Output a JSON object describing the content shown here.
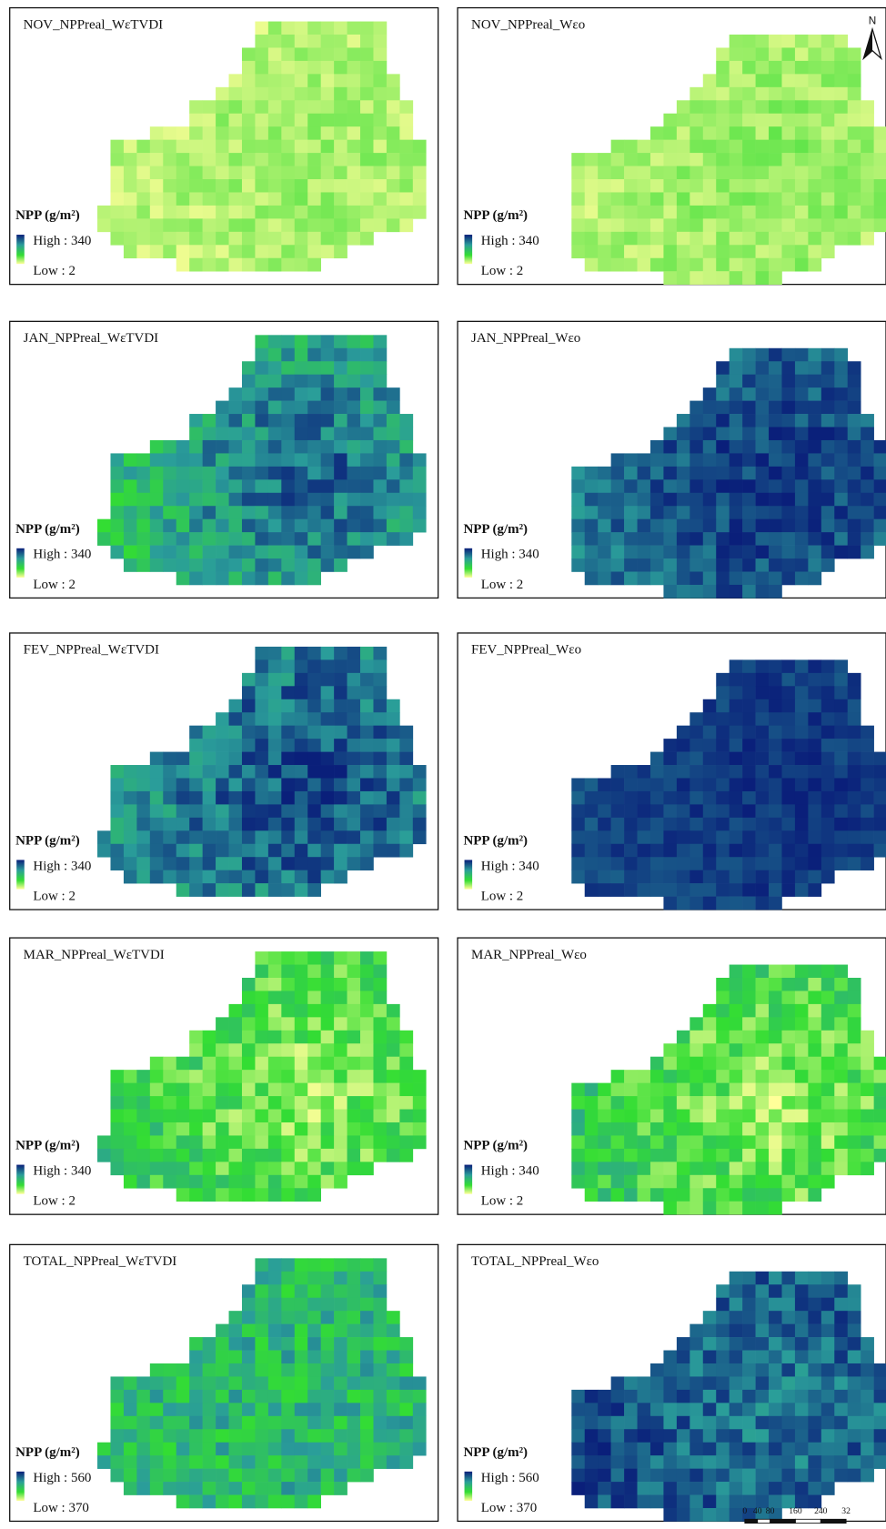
{
  "panels": [
    {
      "title": "NOV_NPPreal_WεTVDI",
      "legend": {
        "title": "NPP (g/m²)",
        "high": "High : 340",
        "low": "Low : 2"
      }
    },
    {
      "title": "NOV_NPPreal_Wεo",
      "legend": {
        "title": "NPP (g/m²)",
        "high": "High : 340",
        "low": "Low : 2"
      }
    },
    {
      "title": "JAN_NPPreal_WεTVDI",
      "legend": {
        "title": "NPP (g/m²)",
        "high": "High : 340",
        "low": "Low : 2"
      }
    },
    {
      "title": "JAN_NPPreal_Wεo",
      "legend": {
        "title": "NPP (g/m²)",
        "high": "High : 340",
        "low": "Low : 2"
      }
    },
    {
      "title": "FEV_NPPreal_WεTVDI",
      "legend": {
        "title": "NPP (g/m²)",
        "high": "High : 340",
        "low": "Low : 2"
      }
    },
    {
      "title": "FEV_NPPreal_Wεo",
      "legend": {
        "title": "NPP (g/m²)",
        "high": "High : 340",
        "low": "Low : 2"
      }
    },
    {
      "title": "MAR_NPPreal_WεTVDI",
      "legend": {
        "title": "NPP (g/m²)",
        "high": "High : 340",
        "low": "Low : 2"
      }
    },
    {
      "title": "MAR_NPPreal_Wεo",
      "legend": {
        "title": "NPP (g/m²)",
        "high": "High : 340",
        "low": "Low : 2"
      }
    },
    {
      "title": "TOTAL_NPPreal_WεTVDI",
      "legend": {
        "title": "NPP (g/m²)",
        "high": "High : 560",
        "low": "Low : 370"
      }
    },
    {
      "title": "TOTAL_NPPreal_Wεo",
      "legend": {
        "title": "NPP (g/m²)",
        "high": "High : 560",
        "low": "Low : 370"
      }
    }
  ],
  "north_arrow": "N",
  "scale_bar": [
    "0",
    "40",
    "80",
    "160",
    "240",
    "32"
  ]
}
